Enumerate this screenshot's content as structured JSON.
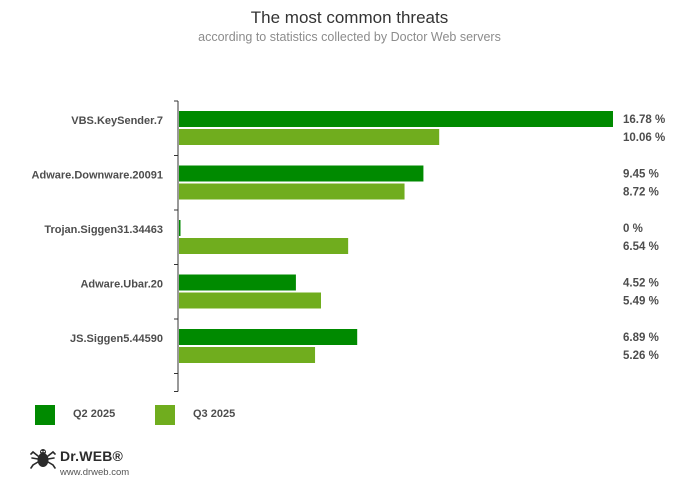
{
  "header": {
    "title": "The most common threats",
    "subtitle": "according to statistics collected by Doctor Web servers"
  },
  "colors": {
    "q2": "#008a00",
    "q3": "#70ad1e",
    "axis": "#333333",
    "label": "#4d4d4d"
  },
  "chart_data": {
    "type": "bar",
    "orientation": "horizontal",
    "categories": [
      "VBS.KeySender.7",
      "Adware.Downware.20091",
      "Trojan.Siggen31.34463",
      "Adware.Ubar.20",
      "JS.Siggen5.44590"
    ],
    "series": [
      {
        "name": "Q2 2025",
        "values": [
          16.78,
          9.45,
          0,
          4.52,
          6.89
        ],
        "labels": [
          "16.78 %",
          "9.45 %",
          "0 %",
          "4.52 %",
          "6.89 %"
        ]
      },
      {
        "name": "Q3 2025",
        "values": [
          10.06,
          8.72,
          6.54,
          5.49,
          5.26
        ],
        "labels": [
          "10.06 %",
          "8.72 %",
          "6.54 %",
          "5.49 %",
          "5.26 %"
        ]
      }
    ],
    "xlim": [
      0,
      16.78
    ],
    "grid": false,
    "legend_position": "bottom-left"
  },
  "legend": {
    "items": [
      {
        "label": "Q2 2025",
        "color_key": "q2"
      },
      {
        "label": "Q3 2025",
        "color_key": "q3"
      }
    ]
  },
  "brand": {
    "logo_text": "Dr.WEB®",
    "url": "www.drweb.com",
    "icon": "spider-logo-icon"
  }
}
